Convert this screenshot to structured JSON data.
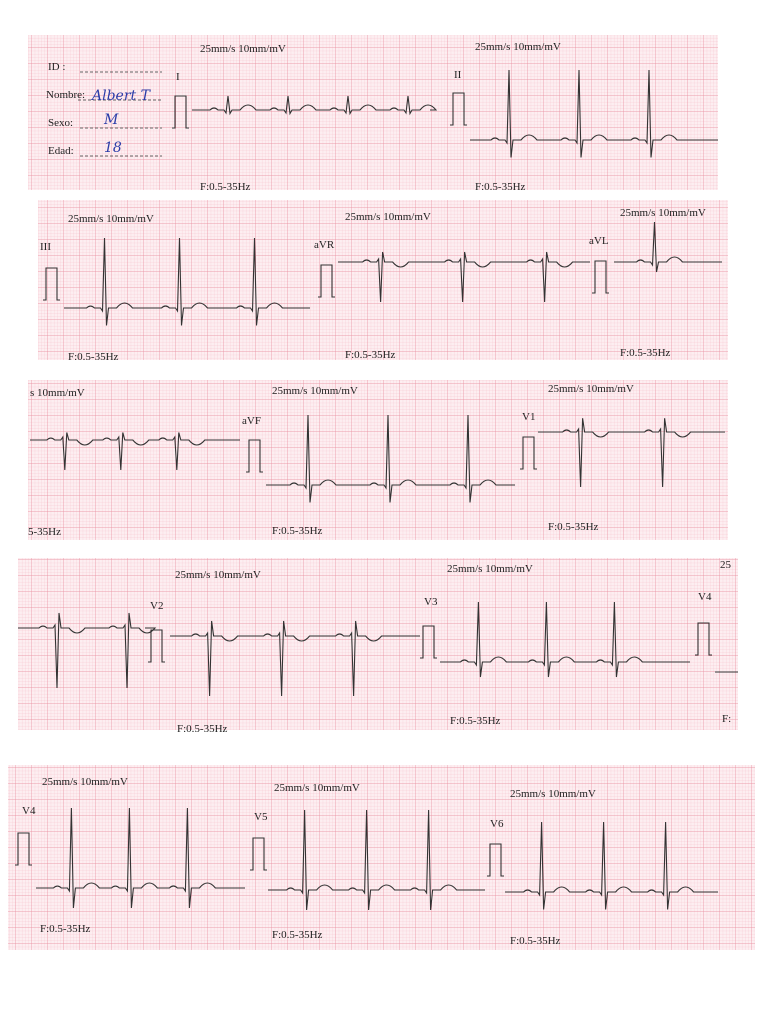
{
  "patient": {
    "id_label": "ID :",
    "name_label": "Nombre:",
    "name": "Albert T",
    "sex_label": "Sexo:",
    "sex": "M",
    "age_label": "Edad:",
    "age": "18"
  },
  "strips": [
    {
      "segments": [
        {
          "speed": "25mm/s  10mm/mV",
          "lead": "I",
          "filter": "F:0.5-35Hz"
        },
        {
          "speed": "25mm/s  10mm/mV",
          "lead": "II",
          "filter": "F:0.5-35Hz"
        }
      ]
    },
    {
      "segments": [
        {
          "speed": "25mm/s  10mm/mV",
          "lead": "III",
          "filter": "F:0.5-35Hz"
        },
        {
          "speed": "25mm/s  10mm/mV",
          "lead": "aVR",
          "filter": "F:0.5-35Hz"
        },
        {
          "speed": "25mm/s  10mm/mV",
          "lead": "aVL",
          "filter": "F:0.5-35Hz"
        }
      ]
    },
    {
      "segments": [
        {
          "speed": "s  10mm/mV",
          "filter": "5-35Hz"
        },
        {
          "speed": "25mm/s  10mm/mV",
          "lead": "aVF",
          "filter": "F:0.5-35Hz"
        },
        {
          "speed": "25mm/s  10mm/mV",
          "lead": "V1",
          "filter": "F:0.5-35Hz"
        }
      ]
    },
    {
      "segments": [
        {
          "speed": "25mm/s  10mm/mV",
          "lead": "V2",
          "filter": "F:0.5-35Hz"
        },
        {
          "speed": "25mm/s  10mm/mV",
          "lead": "V3",
          "filter": "F:0.5-35Hz"
        },
        {
          "speed": "25",
          "lead": "V4",
          "filter": "F:"
        }
      ]
    },
    {
      "segments": [
        {
          "speed": "25mm/s  10mm/mV",
          "lead": "V4",
          "filter": "F:0.5-35Hz"
        },
        {
          "speed": "25mm/s  10mm/mV",
          "lead": "V5",
          "filter": "F:0.5-35Hz"
        },
        {
          "speed": "25mm/s  10mm/mV",
          "lead": "V6",
          "filter": "F:0.5-35Hz"
        }
      ]
    }
  ]
}
